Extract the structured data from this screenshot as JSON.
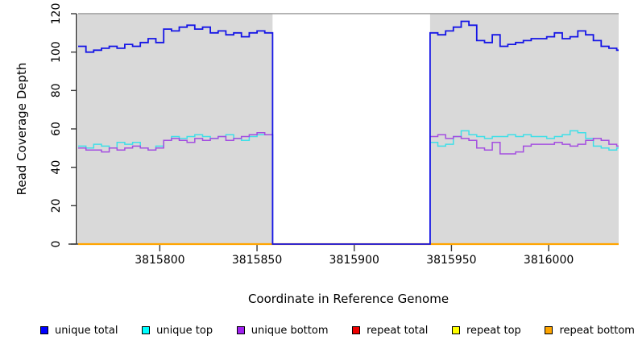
{
  "chart_data": {
    "type": "line",
    "title": "",
    "xlabel": "Coordinate in Reference Genome",
    "ylabel": "Read Coverage Depth",
    "xlim": [
      3815758,
      3816036
    ],
    "ylim": [
      0,
      120
    ],
    "x_ticks": [
      3815800,
      3815850,
      3815900,
      3815950,
      3816000
    ],
    "y_ticks": [
      0,
      20,
      40,
      60,
      80,
      100,
      120
    ],
    "grid": "off",
    "plot_background": "#d9d9d9",
    "plot_top_border_color": "#999999",
    "axis_color": "#3a3a3a",
    "gap_region": {
      "x_start": 3815858,
      "x_end": 3815939,
      "fill": "#ffffff"
    },
    "series": [
      {
        "name": "repeat total",
        "color": "#e00000",
        "line_width": 1.5,
        "paths": [
          {
            "x": [
              3815758,
              3816036
            ],
            "y": [
              0,
              0
            ]
          }
        ]
      },
      {
        "name": "repeat top",
        "color": "#ffff00",
        "line_width": 1.5,
        "paths": [
          {
            "x": [
              3815758,
              3816036
            ],
            "y": [
              0,
              0
            ]
          }
        ]
      },
      {
        "name": "repeat bottom",
        "color": "#ffa500",
        "line_width": 2.2,
        "paths": [
          {
            "x": [
              3815758,
              3816036
            ],
            "y": [
              0,
              0
            ]
          }
        ]
      },
      {
        "name": "unique top",
        "color": "#3fdfe8",
        "line_width": 1.5,
        "paths": [
          {
            "x": [
              3815758,
              3815762,
              3815766,
              3815770,
              3815774,
              3815778,
              3815782,
              3815786,
              3815790,
              3815794,
              3815798,
              3815802,
              3815806,
              3815810,
              3815814,
              3815818,
              3815822,
              3815826,
              3815830,
              3815834,
              3815838,
              3815842,
              3815846,
              3815850,
              3815854,
              3815858
            ],
            "y": [
              51,
              50,
              52,
              51,
              50,
              53,
              52,
              53,
              50,
              49,
              51,
              54,
              56,
              55,
              56,
              57,
              56,
              55,
              56,
              57,
              55,
              54,
              56,
              57,
              57,
              0
            ]
          },
          {
            "x": [
              3815939,
              3815939,
              3815943,
              3815947,
              3815951,
              3815955,
              3815959,
              3815963,
              3815967,
              3815971,
              3815975,
              3815979,
              3815983,
              3815987,
              3815991,
              3815995,
              3815999,
              3816003,
              3816007,
              3816011,
              3816015,
              3816019,
              3816023,
              3816027,
              3816031,
              3816035,
              3816036
            ],
            "y": [
              0,
              53,
              51,
              52,
              56,
              59,
              57,
              56,
              55,
              56,
              56,
              57,
              56,
              57,
              56,
              56,
              55,
              56,
              57,
              59,
              58,
              55,
              51,
              50,
              49,
              50,
              50
            ]
          }
        ]
      },
      {
        "name": "unique bottom",
        "color": "#a44ee0",
        "line_width": 1.5,
        "paths": [
          {
            "x": [
              3815758,
              3815762,
              3815766,
              3815770,
              3815774,
              3815778,
              3815782,
              3815786,
              3815790,
              3815794,
              3815798,
              3815802,
              3815806,
              3815810,
              3815814,
              3815818,
              3815822,
              3815826,
              3815830,
              3815834,
              3815838,
              3815842,
              3815846,
              3815850,
              3815854,
              3815858
            ],
            "y": [
              50,
              49,
              49,
              48,
              50,
              49,
              50,
              51,
              50,
              49,
              50,
              54,
              55,
              54,
              53,
              55,
              54,
              55,
              56,
              54,
              55,
              56,
              57,
              58,
              57,
              0
            ]
          },
          {
            "x": [
              3815939,
              3815939,
              3815943,
              3815947,
              3815951,
              3815955,
              3815959,
              3815963,
              3815967,
              3815971,
              3815975,
              3815979,
              3815983,
              3815987,
              3815991,
              3815995,
              3815999,
              3816003,
              3816007,
              3816011,
              3816015,
              3816019,
              3816023,
              3816027,
              3816031,
              3816035,
              3816036
            ],
            "y": [
              0,
              56,
              57,
              55,
              56,
              55,
              54,
              50,
              49,
              53,
              47,
              47,
              48,
              51,
              52,
              52,
              52,
              53,
              52,
              51,
              52,
              54,
              55,
              54,
              52,
              51,
              51
            ]
          }
        ]
      },
      {
        "name": "unique total",
        "color": "#1515e6",
        "line_width": 1.8,
        "paths": [
          {
            "x": [
              3815758,
              3815762,
              3815766,
              3815770,
              3815774,
              3815778,
              3815782,
              3815786,
              3815790,
              3815794,
              3815798,
              3815802,
              3815806,
              3815810,
              3815814,
              3815818,
              3815822,
              3815826,
              3815830,
              3815834,
              3815838,
              3815842,
              3815846,
              3815850,
              3815854,
              3815858,
              3815939,
              3815943,
              3815947,
              3815951,
              3815955,
              3815959,
              3815963,
              3815967,
              3815971,
              3815975,
              3815979,
              3815983,
              3815987,
              3815991,
              3815995,
              3815999,
              3816003,
              3816007,
              3816011,
              3816015,
              3816019,
              3816023,
              3816027,
              3816031,
              3816035,
              3816036
            ],
            "y": [
              103,
              100,
              101,
              102,
              103,
              102,
              104,
              103,
              105,
              107,
              105,
              112,
              111,
              113,
              114,
              112,
              113,
              110,
              111,
              109,
              110,
              108,
              110,
              111,
              110,
              0,
              110,
              109,
              111,
              113,
              116,
              114,
              106,
              105,
              109,
              103,
              104,
              105,
              106,
              107,
              107,
              108,
              110,
              107,
              108,
              111,
              109,
              106,
              103,
              102,
              101,
              101
            ]
          }
        ]
      }
    ],
    "legend": [
      {
        "label": "unique total",
        "color": "#0000ff"
      },
      {
        "label": "unique top",
        "color": "#00ffff"
      },
      {
        "label": "unique bottom",
        "color": "#a020f0"
      },
      {
        "label": "repeat total",
        "color": "#ee0000"
      },
      {
        "label": "repeat top",
        "color": "#ffff00"
      },
      {
        "label": "repeat bottom",
        "color": "#ffa500"
      }
    ]
  }
}
